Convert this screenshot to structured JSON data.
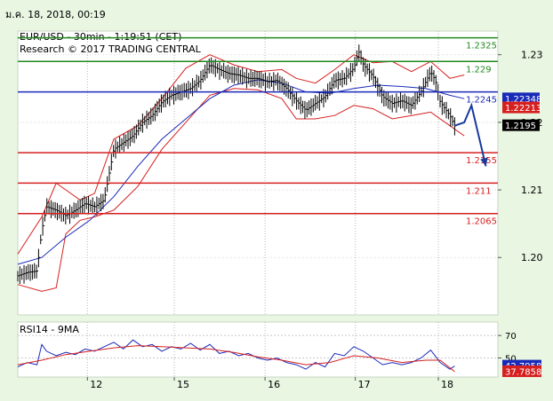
{
  "timestamp": "ม.ค. 18, 2018, 00:19",
  "header": {
    "title": "EUR/USD - 30min - 1:19:51 (CET)",
    "copyright": "Research © 2017 TRADING CENTRAL"
  },
  "colors": {
    "background": "#e8f6e2",
    "plot_bg": "#ffffff",
    "price": "#000000",
    "bollinger": "#d62020",
    "moving_average": "#1a2ab8",
    "resistance": "#1f8a1f",
    "pivot": "#1a2ab8",
    "support": "#d62020",
    "forecast_arrow": "#1a3a9c",
    "rsi_line": "#1a2ab8",
    "rsi_ma": "#d62020",
    "badge_blue": "#1a2ab8",
    "badge_red": "#d62020",
    "badge_black": "#000000"
  },
  "chart_data": [
    {
      "type": "line",
      "subtype": "ohlc_bars",
      "instrument": "EUR/USD",
      "timeframe": "30min",
      "ylim": [
        1.1915,
        1.2335
      ],
      "y_ticks": [
        "1.23",
        "1.22",
        "1.21",
        "1.20"
      ],
      "y_tick_values": [
        1.23,
        1.22,
        1.21,
        1.2
      ],
      "x_ticks": [
        "12",
        "15",
        "16",
        "17",
        "18"
      ],
      "x_tick_positions": [
        0.145,
        0.326,
        0.515,
        0.703,
        0.876
      ],
      "levels": [
        {
          "label": "1.2325",
          "value": 1.2325,
          "role": "resistance"
        },
        {
          "label": "1.229",
          "value": 1.229,
          "role": "resistance"
        },
        {
          "label": "1.2245",
          "value": 1.2245,
          "role": "pivot"
        },
        {
          "label": "1.2155",
          "value": 1.2155,
          "role": "support"
        },
        {
          "label": "1.211",
          "value": 1.211,
          "role": "support"
        },
        {
          "label": "1.2065",
          "value": 1.2065,
          "role": "support"
        }
      ],
      "price_badges": [
        {
          "label": "1.22348",
          "value": 1.22348,
          "color": "blue"
        },
        {
          "label": "1.22213",
          "value": 1.22213,
          "color": "red"
        },
        {
          "label": "1.2195",
          "value": 1.2195,
          "color": "black"
        }
      ],
      "price_path": [
        [
          0.0,
          1.1973
        ],
        [
          0.02,
          1.1978
        ],
        [
          0.04,
          1.198
        ],
        [
          0.05,
          1.204
        ],
        [
          0.06,
          1.2075
        ],
        [
          0.08,
          1.207
        ],
        [
          0.1,
          1.2062
        ],
        [
          0.12,
          1.207
        ],
        [
          0.14,
          1.208
        ],
        [
          0.16,
          1.2075
        ],
        [
          0.18,
          1.2085
        ],
        [
          0.2,
          1.216
        ],
        [
          0.22,
          1.217
        ],
        [
          0.24,
          1.218
        ],
        [
          0.26,
          1.22
        ],
        [
          0.28,
          1.221
        ],
        [
          0.3,
          1.223
        ],
        [
          0.32,
          1.224
        ],
        [
          0.34,
          1.2245
        ],
        [
          0.36,
          1.225
        ],
        [
          0.38,
          1.2262
        ],
        [
          0.4,
          1.2285
        ],
        [
          0.42,
          1.2278
        ],
        [
          0.44,
          1.2272
        ],
        [
          0.46,
          1.227
        ],
        [
          0.48,
          1.2265
        ],
        [
          0.5,
          1.2265
        ],
        [
          0.52,
          1.226
        ],
        [
          0.54,
          1.2262
        ],
        [
          0.56,
          1.225
        ],
        [
          0.58,
          1.2232
        ],
        [
          0.6,
          1.2218
        ],
        [
          0.62,
          1.2228
        ],
        [
          0.64,
          1.2238
        ],
        [
          0.66,
          1.2262
        ],
        [
          0.68,
          1.2265
        ],
        [
          0.7,
          1.228
        ],
        [
          0.71,
          1.2305
        ],
        [
          0.72,
          1.2285
        ],
        [
          0.74,
          1.2268
        ],
        [
          0.76,
          1.2238
        ],
        [
          0.78,
          1.2228
        ],
        [
          0.8,
          1.2232
        ],
        [
          0.82,
          1.2225
        ],
        [
          0.84,
          1.2245
        ],
        [
          0.86,
          1.2275
        ],
        [
          0.87,
          1.2262
        ],
        [
          0.88,
          1.223
        ],
        [
          0.9,
          1.221
        ],
        [
          0.91,
          1.2195
        ]
      ],
      "moving_average": [
        [
          0.0,
          1.199
        ],
        [
          0.05,
          1.2
        ],
        [
          0.1,
          1.203
        ],
        [
          0.15,
          1.2055
        ],
        [
          0.2,
          1.209
        ],
        [
          0.25,
          1.2135
        ],
        [
          0.3,
          1.2175
        ],
        [
          0.35,
          1.2205
        ],
        [
          0.4,
          1.2235
        ],
        [
          0.45,
          1.2255
        ],
        [
          0.5,
          1.2263
        ],
        [
          0.55,
          1.2258
        ],
        [
          0.6,
          1.2245
        ],
        [
          0.65,
          1.2243
        ],
        [
          0.7,
          1.225
        ],
        [
          0.75,
          1.2255
        ],
        [
          0.8,
          1.2253
        ],
        [
          0.85,
          1.225
        ],
        [
          0.9,
          1.224
        ],
        [
          0.93,
          1.2235
        ]
      ],
      "bollinger_upper": [
        [
          0.0,
          1.2005
        ],
        [
          0.05,
          1.206
        ],
        [
          0.08,
          1.211
        ],
        [
          0.1,
          1.21
        ],
        [
          0.13,
          1.2085
        ],
        [
          0.16,
          1.2095
        ],
        [
          0.2,
          1.2175
        ],
        [
          0.25,
          1.2195
        ],
        [
          0.3,
          1.2235
        ],
        [
          0.35,
          1.228
        ],
        [
          0.4,
          1.23
        ],
        [
          0.45,
          1.2285
        ],
        [
          0.5,
          1.2275
        ],
        [
          0.55,
          1.2278
        ],
        [
          0.58,
          1.2265
        ],
        [
          0.62,
          1.2258
        ],
        [
          0.66,
          1.2278
        ],
        [
          0.7,
          1.23
        ],
        [
          0.74,
          1.2288
        ],
        [
          0.78,
          1.229
        ],
        [
          0.82,
          1.2275
        ],
        [
          0.86,
          1.229
        ],
        [
          0.9,
          1.2265
        ],
        [
          0.93,
          1.227
        ]
      ],
      "bollinger_lower": [
        [
          0.0,
          1.196
        ],
        [
          0.05,
          1.195
        ],
        [
          0.08,
          1.1955
        ],
        [
          0.1,
          1.2035
        ],
        [
          0.13,
          1.2055
        ],
        [
          0.16,
          1.206
        ],
        [
          0.2,
          1.207
        ],
        [
          0.25,
          1.2105
        ],
        [
          0.3,
          1.216
        ],
        [
          0.35,
          1.22
        ],
        [
          0.4,
          1.224
        ],
        [
          0.45,
          1.225
        ],
        [
          0.5,
          1.2248
        ],
        [
          0.55,
          1.2235
        ],
        [
          0.58,
          1.2205
        ],
        [
          0.62,
          1.2205
        ],
        [
          0.66,
          1.221
        ],
        [
          0.7,
          1.2225
        ],
        [
          0.74,
          1.222
        ],
        [
          0.78,
          1.2205
        ],
        [
          0.82,
          1.221
        ],
        [
          0.86,
          1.2215
        ],
        [
          0.9,
          1.2195
        ],
        [
          0.93,
          1.218
        ]
      ],
      "forecast": [
        [
          0.91,
          1.2195
        ],
        [
          0.93,
          1.22
        ],
        [
          0.945,
          1.2225
        ],
        [
          0.975,
          1.2135
        ]
      ]
    },
    {
      "type": "line",
      "title": "RSI14 - 9MA",
      "ylim": [
        33,
        82
      ],
      "y_ticks": [
        "70",
        "50"
      ],
      "y_tick_values": [
        70,
        50
      ],
      "badges": [
        {
          "label": "42.7958",
          "value": 42.7958,
          "color": "blue"
        },
        {
          "label": "37.7858",
          "value": 37.7858,
          "color": "red"
        }
      ],
      "series": [
        {
          "name": "RSI14",
          "points": [
            [
              0.0,
              42
            ],
            [
              0.02,
              46
            ],
            [
              0.04,
              44
            ],
            [
              0.05,
              62
            ],
            [
              0.06,
              56
            ],
            [
              0.08,
              52
            ],
            [
              0.1,
              55
            ],
            [
              0.12,
              53
            ],
            [
              0.14,
              58
            ],
            [
              0.16,
              56
            ],
            [
              0.18,
              60
            ],
            [
              0.2,
              64
            ],
            [
              0.22,
              58
            ],
            [
              0.24,
              66
            ],
            [
              0.26,
              60
            ],
            [
              0.28,
              62
            ],
            [
              0.3,
              56
            ],
            [
              0.32,
              60
            ],
            [
              0.34,
              58
            ],
            [
              0.36,
              63
            ],
            [
              0.38,
              57
            ],
            [
              0.4,
              62
            ],
            [
              0.42,
              54
            ],
            [
              0.44,
              56
            ],
            [
              0.46,
              52
            ],
            [
              0.48,
              54
            ],
            [
              0.5,
              50
            ],
            [
              0.52,
              48
            ],
            [
              0.54,
              50
            ],
            [
              0.56,
              46
            ],
            [
              0.58,
              44
            ],
            [
              0.6,
              40
            ],
            [
              0.62,
              46
            ],
            [
              0.64,
              42
            ],
            [
              0.66,
              54
            ],
            [
              0.68,
              52
            ],
            [
              0.7,
              60
            ],
            [
              0.72,
              56
            ],
            [
              0.74,
              50
            ],
            [
              0.76,
              44
            ],
            [
              0.78,
              46
            ],
            [
              0.8,
              44
            ],
            [
              0.82,
              46
            ],
            [
              0.84,
              50
            ],
            [
              0.86,
              57
            ],
            [
              0.88,
              46
            ],
            [
              0.9,
              40
            ],
            [
              0.91,
              42.8
            ]
          ]
        },
        {
          "name": "9MA",
          "points": [
            [
              0.0,
              44
            ],
            [
              0.05,
              48
            ],
            [
              0.1,
              53
            ],
            [
              0.15,
              56
            ],
            [
              0.2,
              59
            ],
            [
              0.25,
              61
            ],
            [
              0.3,
              60
            ],
            [
              0.35,
              59
            ],
            [
              0.4,
              58
            ],
            [
              0.45,
              55
            ],
            [
              0.5,
              51
            ],
            [
              0.55,
              48
            ],
            [
              0.6,
              44
            ],
            [
              0.65,
              46
            ],
            [
              0.7,
              52
            ],
            [
              0.75,
              50
            ],
            [
              0.8,
              46
            ],
            [
              0.85,
              48
            ],
            [
              0.88,
              48
            ],
            [
              0.91,
              37.8
            ]
          ]
        }
      ]
    }
  ]
}
